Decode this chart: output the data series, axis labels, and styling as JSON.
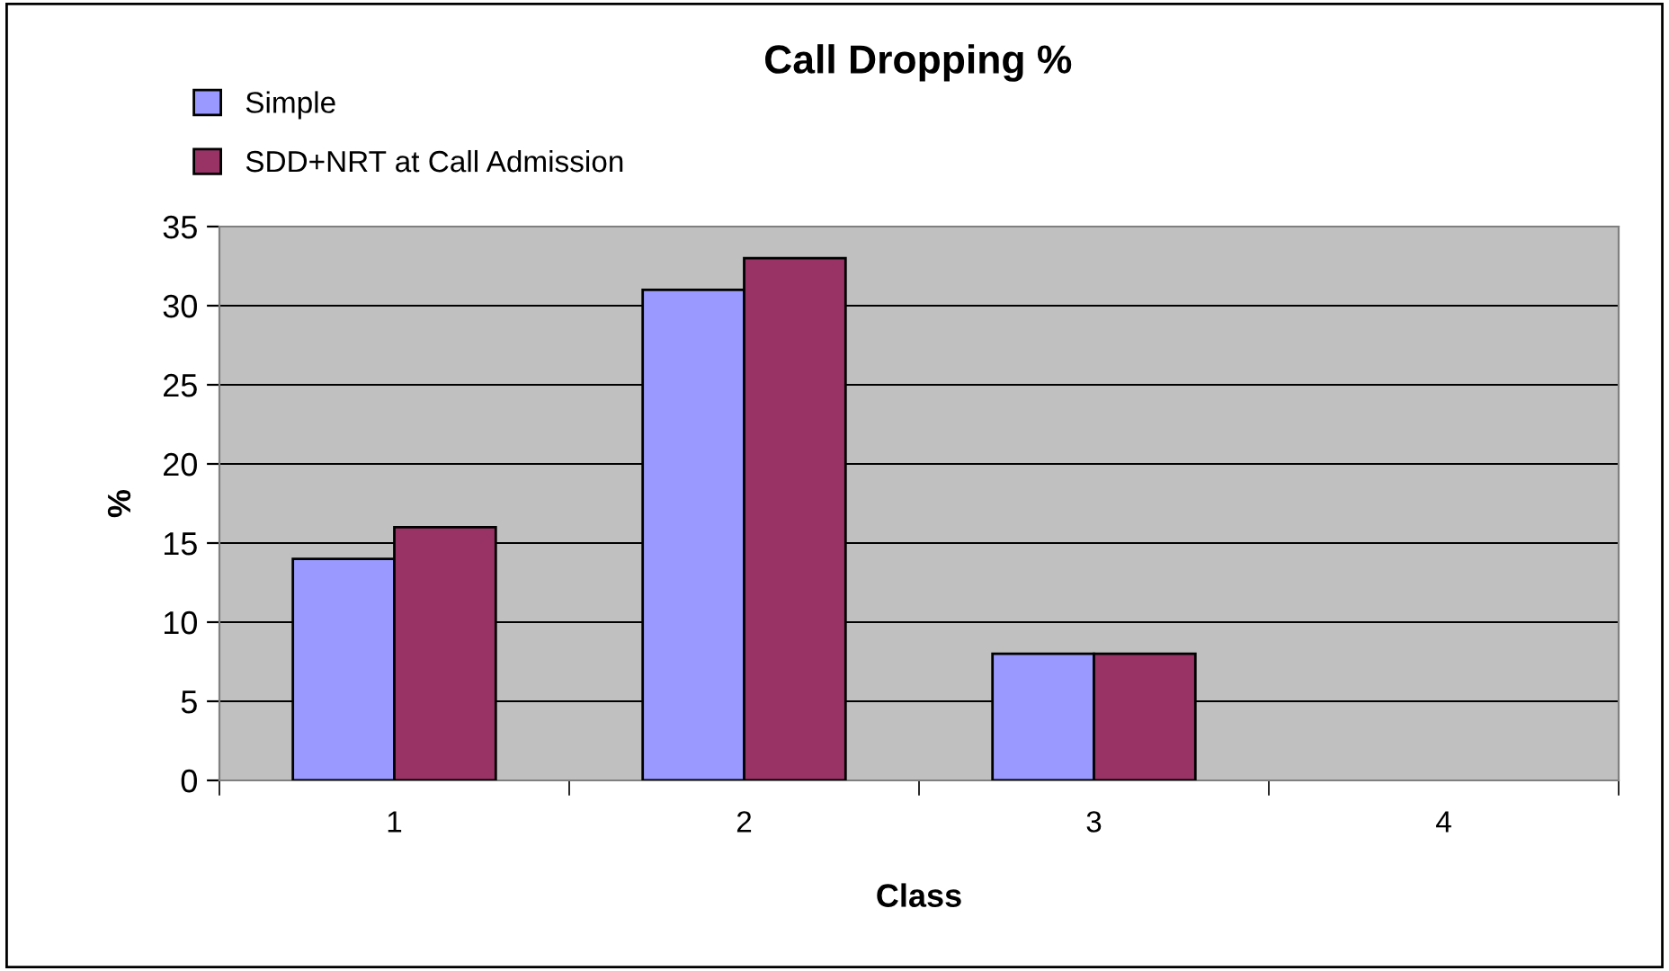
{
  "chart_data": {
    "type": "bar",
    "title": "Call Dropping %",
    "xlabel": "Class",
    "ylabel": "%",
    "categories": [
      "1",
      "2",
      "3",
      "4"
    ],
    "series": [
      {
        "name": "Simple",
        "color": "#9999ff",
        "values": [
          14,
          31,
          8,
          null
        ]
      },
      {
        "name": "SDD+NRT at Call Admission",
        "color": "#993366",
        "values": [
          16,
          33,
          8,
          null
        ]
      }
    ],
    "ylim": [
      0,
      35
    ],
    "yticks": [
      0,
      5,
      10,
      15,
      20,
      25,
      30,
      35
    ],
    "grid": "y",
    "legend": "top left"
  }
}
